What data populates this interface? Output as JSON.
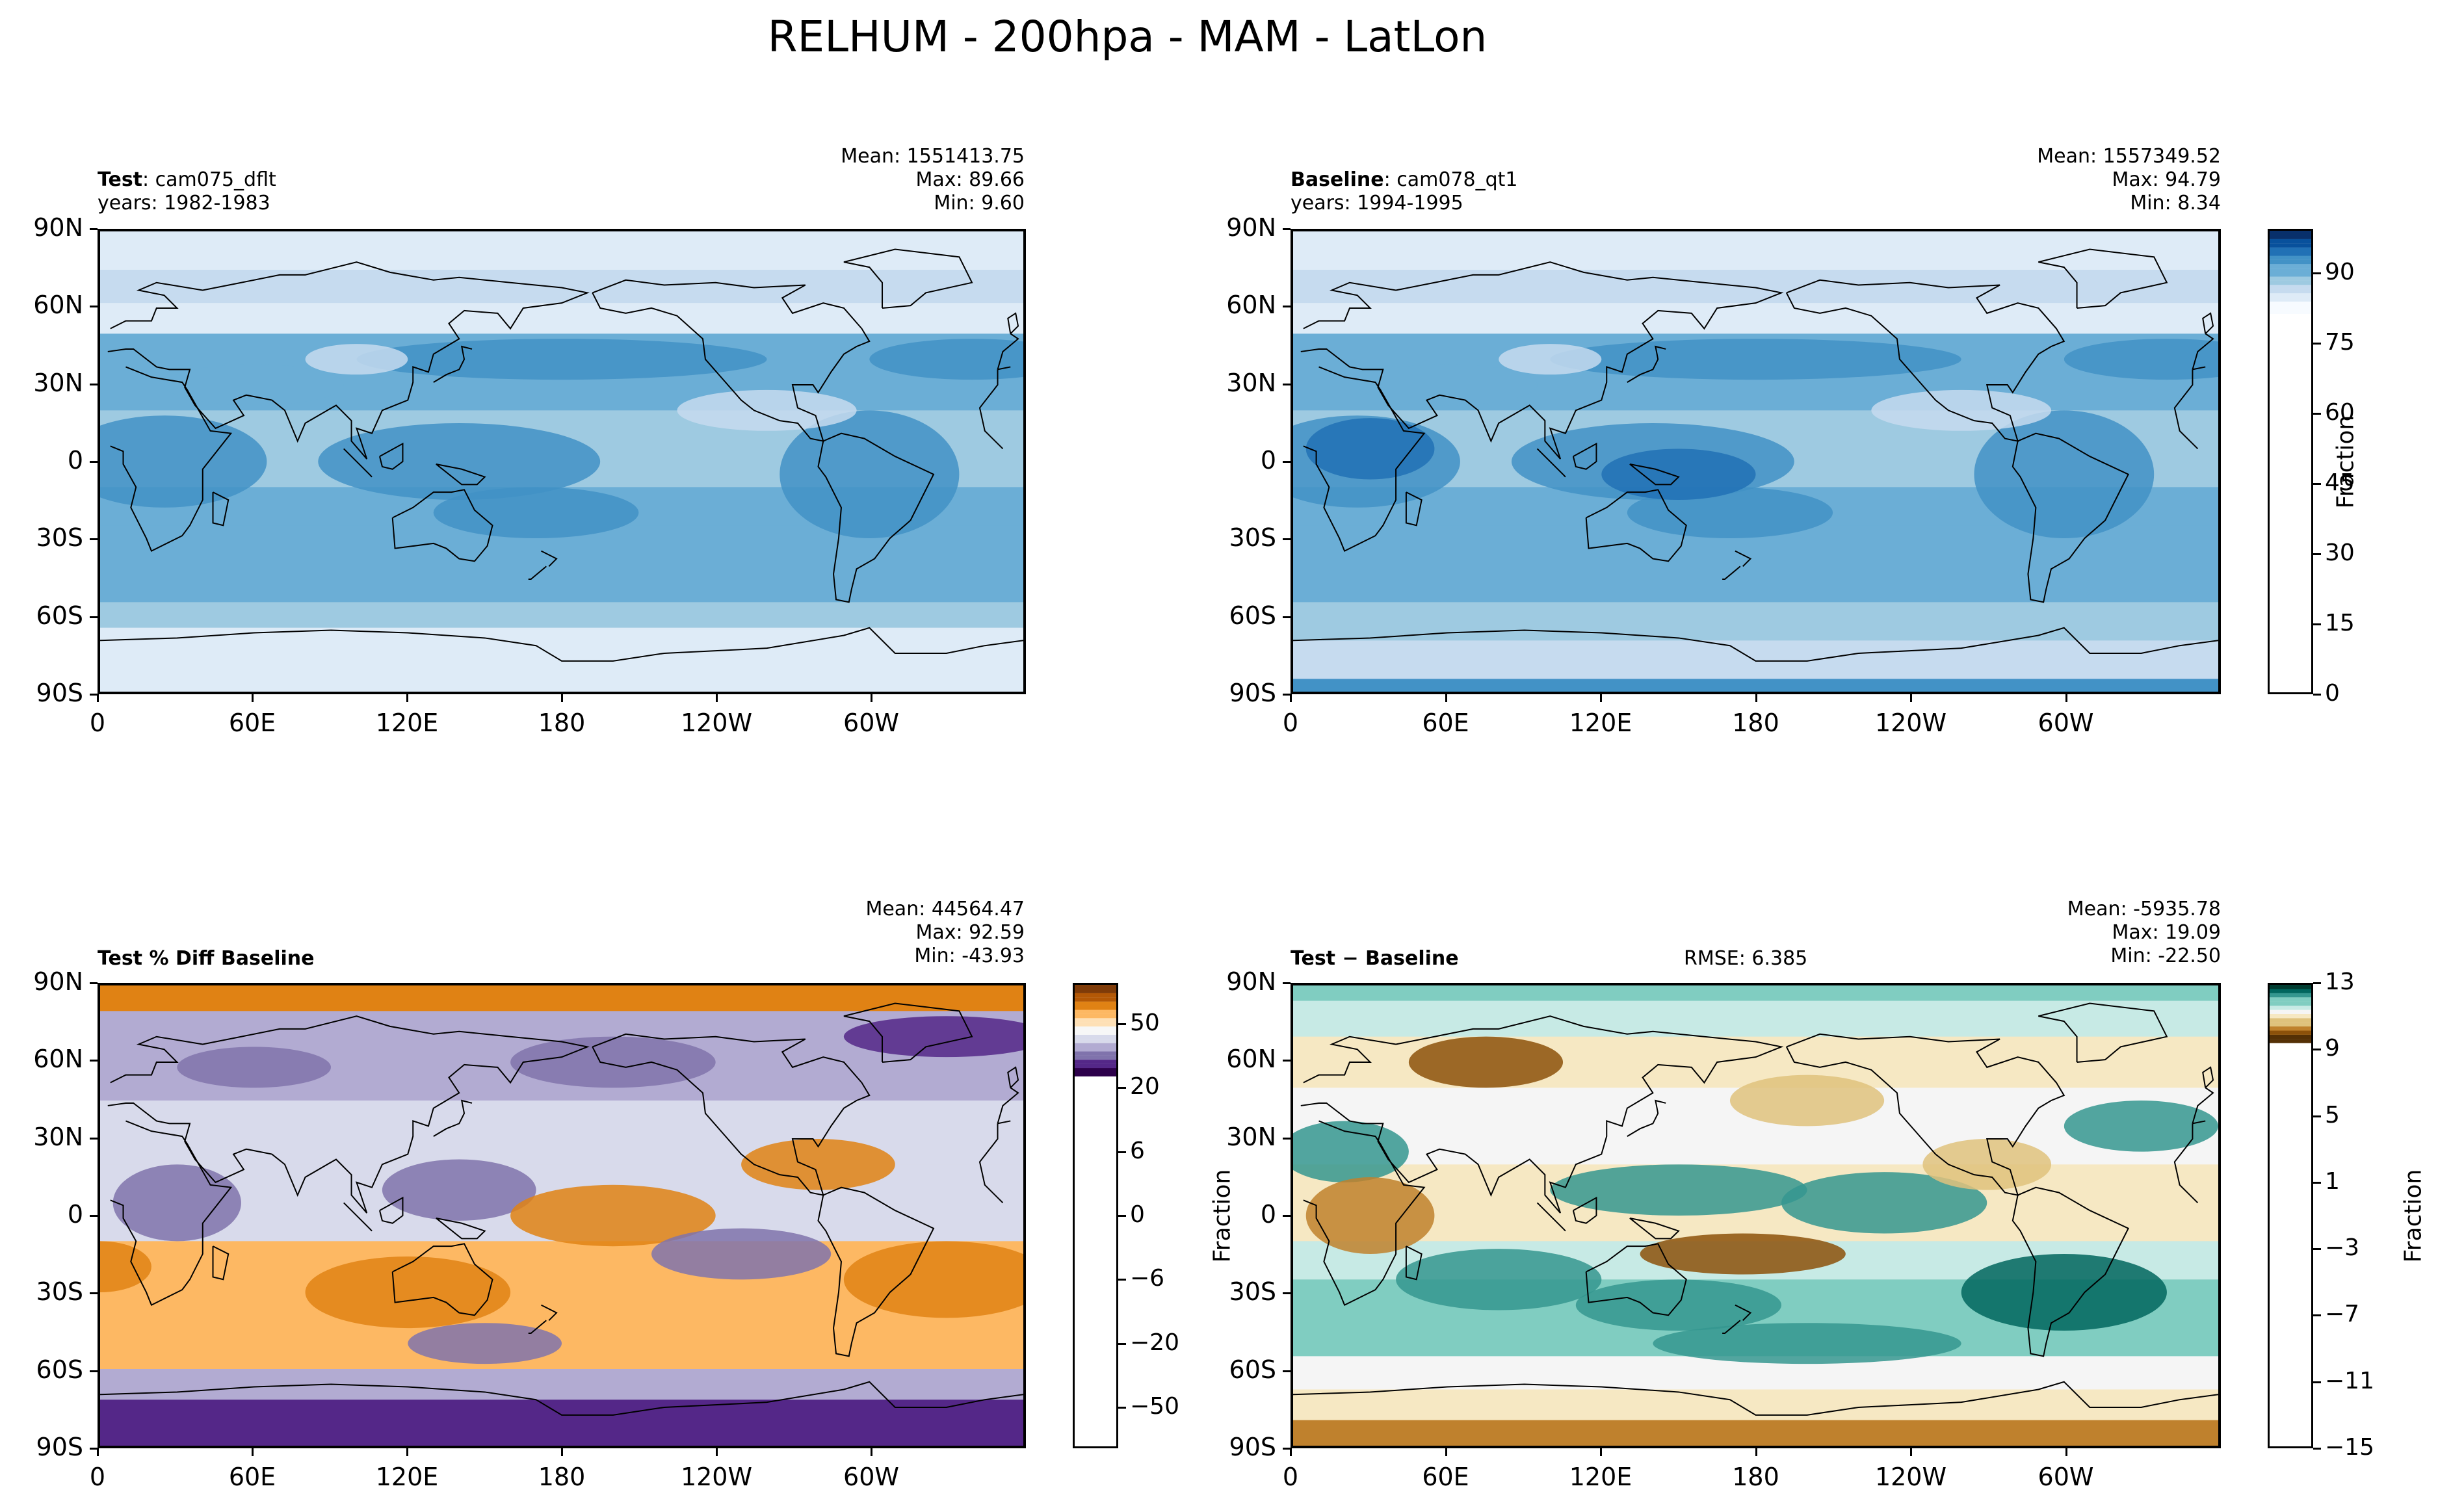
{
  "page": {
    "title": "RELHUM - 200hpa - MAM - LatLon"
  },
  "panels": {
    "test": {
      "label": "Test",
      "name": ": cam075_dflt",
      "years": "years: 1982-1983",
      "mean": "Mean: 1551413.75",
      "max": "Max: 89.66",
      "min": "Min:  9.60"
    },
    "baseline": {
      "label": "Baseline",
      "name": ": cam078_qt1",
      "years": "years: 1994-1995",
      "mean": "Mean: 1557349.52",
      "max": "Max: 94.79",
      "min": "Min:  8.34"
    },
    "pctdiff": {
      "label": "Test % Diff Baseline",
      "mean": "Mean: 44564.47",
      "max": "Max: 92.59",
      "min": "Min: -43.93"
    },
    "diff": {
      "label": "Test − Baseline",
      "rmse": "RMSE: 6.385",
      "mean": "Mean: -5935.78",
      "max": "Max: 19.09",
      "min": "Min: -22.50",
      "ylabel": "Fraction"
    }
  },
  "colors": {
    "blues": [
      "#f7fbff",
      "#deebf7",
      "#c6dbef",
      "#9ecae1",
      "#6baed6",
      "#4292c6",
      "#2171b5",
      "#08519c",
      "#08306b"
    ],
    "puor": [
      "#2d004b",
      "#542788",
      "#8073ac",
      "#b2abd2",
      "#d8daeb",
      "#f7f7f7",
      "#fee0b6",
      "#fdb863",
      "#e08214",
      "#b35806",
      "#7f3b08"
    ],
    "brbg": [
      "#543005",
      "#8c510a",
      "#bf812d",
      "#dfc27d",
      "#f6e8c3",
      "#f5f5f5",
      "#c7eae5",
      "#80cdc1",
      "#35978f",
      "#01665e",
      "#003c30"
    ]
  },
  "chart_data": [
    {
      "type": "heatmap",
      "title": "Test : cam075_dflt",
      "xticks": [
        "0",
        "60E",
        "120E",
        "180",
        "120W",
        "60W"
      ],
      "yticks": [
        "90N",
        "60N",
        "30N",
        "0",
        "30S",
        "60S",
        "90S"
      ],
      "xlim": [
        0,
        360
      ],
      "ylim": [
        -90,
        90
      ],
      "colorbar": {
        "label": "Fraction",
        "ticks": [
          "90",
          "75",
          "60",
          "45",
          "30",
          "15",
          "0"
        ],
        "range": [
          0,
          100
        ]
      },
      "stats": {
        "mean": 1551413.75,
        "max": 89.66,
        "min": 9.6
      }
    },
    {
      "type": "heatmap",
      "title": "Baseline : cam078_qt1",
      "xticks": [
        "0",
        "60E",
        "120E",
        "180",
        "120W",
        "60W"
      ],
      "yticks": [
        "90N",
        "60N",
        "30N",
        "0",
        "30S",
        "60S",
        "90S"
      ],
      "xlim": [
        0,
        360
      ],
      "ylim": [
        -90,
        90
      ],
      "stats": {
        "mean": 1557349.52,
        "max": 94.79,
        "min": 8.34
      }
    },
    {
      "type": "heatmap",
      "title": "Test % Diff Baseline",
      "xticks": [
        "0",
        "60E",
        "120E",
        "180",
        "120W",
        "60W"
      ],
      "yticks": [
        "90N",
        "60N",
        "30N",
        "0",
        "30S",
        "60S",
        "90S"
      ],
      "xlim": [
        0,
        360
      ],
      "ylim": [
        -90,
        90
      ],
      "colorbar": {
        "label": "",
        "ticks": [
          "50",
          "20",
          "6",
          "0",
          "−6",
          "−20",
          "−50"
        ],
        "range": [
          -70,
          70
        ]
      },
      "stats": {
        "mean": 44564.47,
        "max": 92.59,
        "min": -43.93
      }
    },
    {
      "type": "heatmap",
      "title": "Test − Baseline",
      "xticks": [
        "0",
        "60E",
        "120E",
        "180",
        "120W",
        "60W"
      ],
      "yticks": [
        "90N",
        "60N",
        "30N",
        "0",
        "30S",
        "60S",
        "90S"
      ],
      "xlim": [
        0,
        360
      ],
      "ylim": [
        -90,
        90
      ],
      "colorbar": {
        "label": "Fraction",
        "ticks": [
          "13",
          "9",
          "5",
          "1",
          "−3",
          "−7",
          "−11",
          "−15"
        ],
        "range": [
          -15,
          13
        ]
      },
      "stats": {
        "mean": -5935.78,
        "max": 19.09,
        "min": -22.5,
        "rmse": 6.385
      }
    }
  ]
}
